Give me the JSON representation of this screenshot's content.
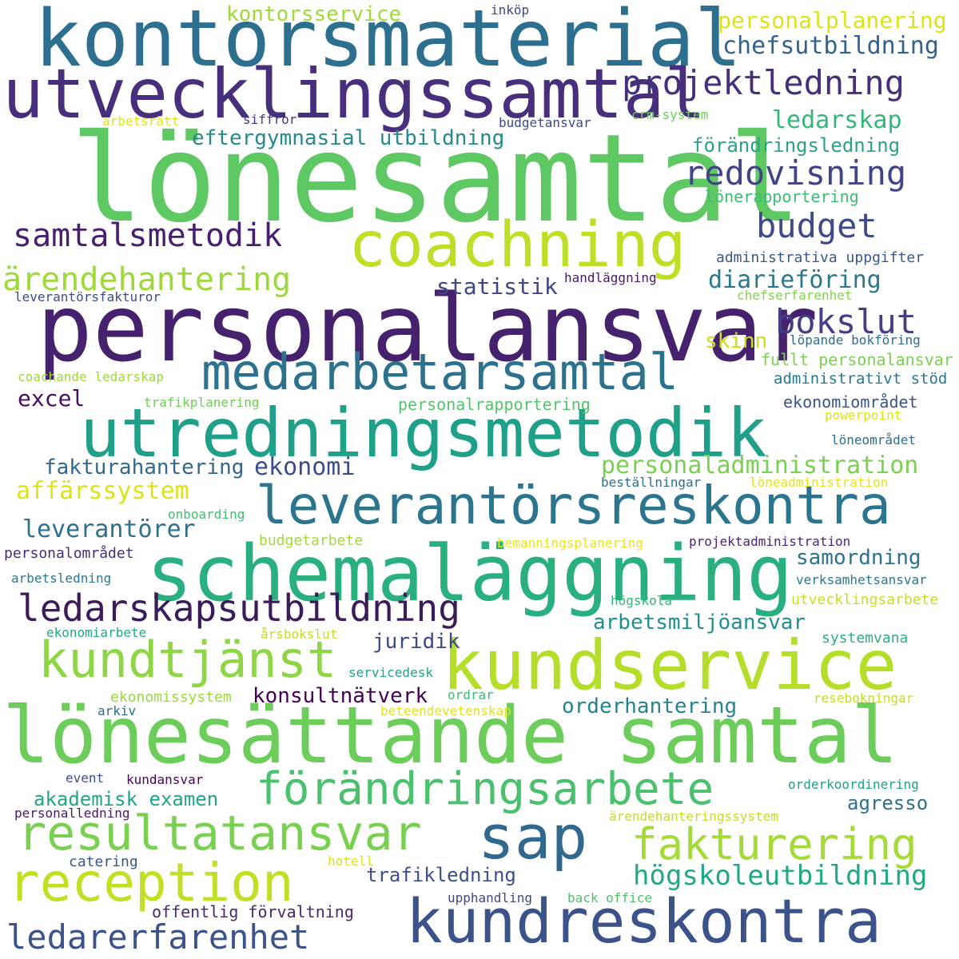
{
  "words": [
    {
      "text": "lönesamtal",
      "color": "#5ec962"
    },
    {
      "text": "personalansvar",
      "color": "#46226e"
    },
    {
      "text": "kontorsmaterial",
      "color": "#2d6f8e"
    },
    {
      "text": "lönesättande samtal",
      "color": "#6ccd5a"
    },
    {
      "text": "schemaläggning",
      "color": "#2ab07f"
    },
    {
      "text": "utvecklingssamtal",
      "color": "#472f7d"
    },
    {
      "text": "utredningsmetodik",
      "color": "#1fa088"
    },
    {
      "text": "kundservice",
      "color": "#b5de2b"
    },
    {
      "text": "coachning",
      "color": "#bddf26"
    },
    {
      "text": "leverantörsreskontra",
      "color": "#2b758e"
    },
    {
      "text": "kundreskontra",
      "color": "#3b528b"
    },
    {
      "text": "medarbetarsamtal",
      "color": "#2c728e"
    },
    {
      "text": "förändringsarbete",
      "color": "#4ac16d"
    },
    {
      "text": "reception",
      "color": "#c2df23"
    },
    {
      "text": "resultatansvar",
      "color": "#7ad151"
    },
    {
      "text": "sap",
      "color": "#31688e"
    },
    {
      "text": "fakturering",
      "color": "#a5db36"
    },
    {
      "text": "kundtjänst",
      "color": "#8ed645"
    },
    {
      "text": "ledarskapsutbildning",
      "color": "#3b1c5a"
    },
    {
      "text": "projektledning",
      "color": "#46307e"
    },
    {
      "text": "redovisning",
      "color": "#414487"
    },
    {
      "text": "samtalsmetodik",
      "color": "#481f70"
    },
    {
      "text": "ärendehantering",
      "color": "#9dd93b"
    },
    {
      "text": "ledarerfarenhet",
      "color": "#3b528b"
    },
    {
      "text": "budget",
      "color": "#3e4a89"
    },
    {
      "text": "bokslut",
      "color": "#433e85"
    },
    {
      "text": "högskoleutbildning",
      "color": "#22a884"
    },
    {
      "text": "personaladministration",
      "color": "#7ad151"
    },
    {
      "text": "chefsutbildning",
      "color": "#33638d"
    },
    {
      "text": "personalplanering",
      "color": "#dde318"
    },
    {
      "text": "ledarskap",
      "color": "#35b779"
    },
    {
      "text": "diarieföring",
      "color": "#2a788e"
    },
    {
      "text": "eftergymnasial utbildning",
      "color": "#238a8d"
    },
    {
      "text": "kontorsservice",
      "color": "#9fda3a"
    },
    {
      "text": "förändringsledning",
      "color": "#2ba08a"
    },
    {
      "text": "affärssystem",
      "color": "#dde318"
    },
    {
      "text": "leverantörer",
      "color": "#2d708e"
    },
    {
      "text": "ekonomi",
      "color": "#3e4c8a"
    },
    {
      "text": "fakturahantering",
      "color": "#31688e"
    },
    {
      "text": "statistik",
      "color": "#3f4788"
    },
    {
      "text": "samordning",
      "color": "#2c728e"
    },
    {
      "text": "arbetsmiljöansvar",
      "color": "#21908d"
    },
    {
      "text": "juridik",
      "color": "#3e4989"
    },
    {
      "text": "konsultnätverk",
      "color": "#440154"
    },
    {
      "text": "orderhantering",
      "color": "#26828e"
    },
    {
      "text": "akademisk examen",
      "color": "#21a685"
    },
    {
      "text": "agresso",
      "color": "#2c718e"
    },
    {
      "text": "trafikledning",
      "color": "#3b518b"
    },
    {
      "text": "offentlig förvaltning",
      "color": "#482878"
    },
    {
      "text": "excel",
      "color": "#470d60"
    },
    {
      "text": "skinn",
      "color": "#c8e020"
    },
    {
      "text": "fullt personalansvar",
      "color": "#7ad151"
    },
    {
      "text": "administrativt stöd",
      "color": "#2a788e"
    },
    {
      "text": "ekonomiområdet",
      "color": "#3b528b"
    },
    {
      "text": "administrativa uppgifter",
      "color": "#38598c"
    },
    {
      "text": "handläggning",
      "color": "#48186a"
    },
    {
      "text": "lönerapportering",
      "color": "#3dbc74"
    },
    {
      "text": "löpande bokföring",
      "color": "#2f6c8e"
    },
    {
      "text": "inköp",
      "color": "#3f4788"
    },
    {
      "text": "arbetsrätt",
      "color": "#e5e419"
    },
    {
      "text": "siffror",
      "color": "#46337f"
    },
    {
      "text": "budgetansvar",
      "color": "#3e4a89"
    },
    {
      "text": "crm-system",
      "color": "#6ece58"
    },
    {
      "text": "leverantörsfakturor",
      "color": "#3e4c8a"
    },
    {
      "text": "chefserfarenhet",
      "color": "#84d44b"
    },
    {
      "text": "coachande ledarskap",
      "color": "#a0da39"
    },
    {
      "text": "trafikplanering",
      "color": "#6ece58"
    },
    {
      "text": "personalrapportering",
      "color": "#52c569"
    },
    {
      "text": "powerpoint",
      "color": "#dde318"
    },
    {
      "text": "löneområdet",
      "color": "#2f6c8e"
    },
    {
      "text": "beställningar",
      "color": "#2e6f8e"
    },
    {
      "text": "löneadministration",
      "color": "#e5e419"
    },
    {
      "text": "onboarding",
      "color": "#42be71"
    },
    {
      "text": "personalområdet",
      "color": "#472c7a"
    },
    {
      "text": "budgetarbete",
      "color": "#a2da37"
    },
    {
      "text": "bemanningsplanering",
      "color": "#eae51a"
    },
    {
      "text": "projektadministration",
      "color": "#482677"
    },
    {
      "text": "arbetsledning",
      "color": "#2a788e"
    },
    {
      "text": "verksamhetsansvar",
      "color": "#2a788e"
    },
    {
      "text": "högskola",
      "color": "#32b67a"
    },
    {
      "text": "utvecklingsarbete",
      "color": "#c8e020"
    },
    {
      "text": "ekonomiarbete",
      "color": "#22a884"
    },
    {
      "text": "årsbokslut",
      "color": "#c0df25"
    },
    {
      "text": "systemvana",
      "color": "#2ab07f"
    },
    {
      "text": "servicedesk",
      "color": "#20a386"
    },
    {
      "text": "ekonomissystem",
      "color": "#9dd93b"
    },
    {
      "text": "ordrar",
      "color": "#3dbc74"
    },
    {
      "text": "arkiv",
      "color": "#2e6f8e"
    },
    {
      "text": "beteendevetenskap",
      "color": "#e2e418"
    },
    {
      "text": "resebokningar",
      "color": "#c5e021"
    },
    {
      "text": "event",
      "color": "#3d4e8a"
    },
    {
      "text": "kundansvar",
      "color": "#450559"
    },
    {
      "text": "orderkoordinering",
      "color": "#1fa188"
    },
    {
      "text": "personalledning",
      "color": "#481a6c"
    },
    {
      "text": "ärendehanteringssystem",
      "color": "#bddf26"
    },
    {
      "text": "catering",
      "color": "#38598c"
    },
    {
      "text": "hotell",
      "color": "#dae319"
    },
    {
      "text": "upphandling",
      "color": "#3f4788"
    },
    {
      "text": "back office",
      "color": "#4ec36b"
    }
  ]
}
